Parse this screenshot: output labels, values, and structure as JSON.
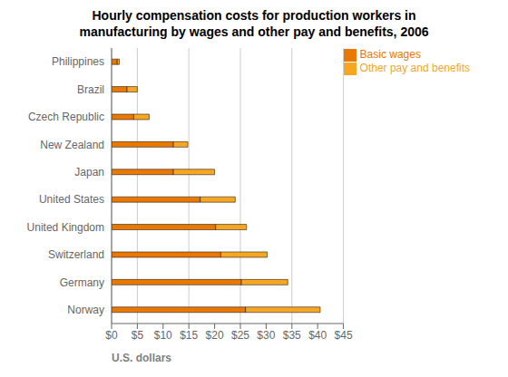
{
  "chart_data": {
    "type": "bar",
    "orientation": "horizontal",
    "stacked": true,
    "title": "Hourly compensation costs for production workers in\nmanufacturing by wages and other pay and benefits, 2006",
    "categories": [
      "Norway",
      "Germany",
      "Switzerland",
      "United Kingdom",
      "United States",
      "Japan",
      "New Zealand",
      "Czech Republic",
      "Brazil",
      "Philippines"
    ],
    "series": [
      {
        "name": "Basic wages",
        "color": "#E87800",
        "values": [
          26.0,
          25.2,
          21.2,
          20.2,
          17.2,
          12.0,
          12.0,
          4.3,
          3.0,
          1.1
        ]
      },
      {
        "name": "Other pay and benefits",
        "color": "#F5A623",
        "values": [
          14.5,
          9.0,
          9.0,
          6.0,
          6.8,
          8.0,
          2.8,
          3.0,
          2.0,
          0.4
        ]
      }
    ],
    "xlabel": "U.S. dollars",
    "xlim": [
      0,
      45
    ],
    "xticks": [
      {
        "value": 0,
        "label": "$0"
      },
      {
        "value": 5,
        "label": "$5"
      },
      {
        "value": 10,
        "label": "$10"
      },
      {
        "value": 15,
        "label": "$15"
      },
      {
        "value": 20,
        "label": "$20"
      },
      {
        "value": 25,
        "label": "$25"
      },
      {
        "value": 30,
        "label": "$30"
      },
      {
        "value": 35,
        "label": "$35"
      },
      {
        "value": 40,
        "label": "$40"
      },
      {
        "value": 45,
        "label": "$45"
      }
    ],
    "grid": true,
    "legend": "upper right"
  }
}
